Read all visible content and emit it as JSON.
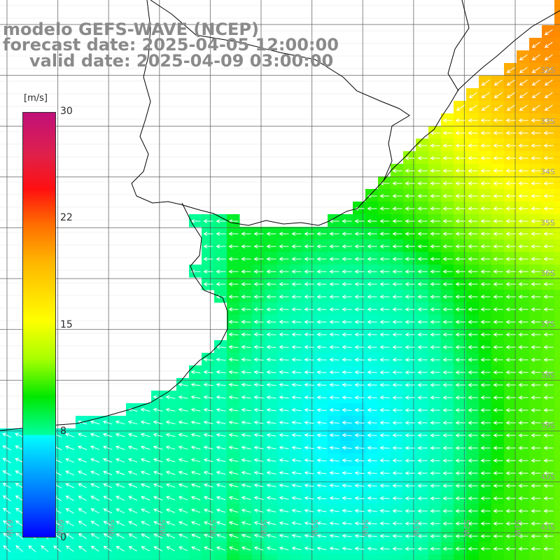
{
  "title": {
    "line1": "modelo GEFS-WAVE (NCEP)",
    "line2": "forecast date: 2025-04-05 12:00:00",
    "line3": "valid date: 2025-04-09 03:00:00"
  },
  "colorbar": {
    "unit": "[m/s]",
    "ticks": [
      "30",
      "22",
      "15",
      "8",
      "0"
    ],
    "colors": [
      "#c0107a",
      "#ff1010",
      "#ff6a00",
      "#ffff00",
      "#00e800",
      "#00ffff",
      "#0060ff",
      "#0000ff"
    ]
  },
  "lat_labels": [
    "32S",
    "33S",
    "34S",
    "35S",
    "36S",
    "37S",
    "38S",
    "39S",
    "40S",
    "41S"
  ],
  "lon_labels": [
    "61W",
    "60W",
    "59W",
    "58W",
    "57W",
    "56W",
    "55W",
    "54W",
    "53W",
    "52W",
    "51W"
  ],
  "colors": {
    "land": "#ffffff",
    "coast": "#000000",
    "grid": "#555555",
    "arrow": "#ffffff",
    "title": "#8a8a8a"
  },
  "wind": {
    "max_speed_m_s": 18,
    "dominant_direction": "westward / south-westward",
    "field_description_visible_as_colors": true
  }
}
